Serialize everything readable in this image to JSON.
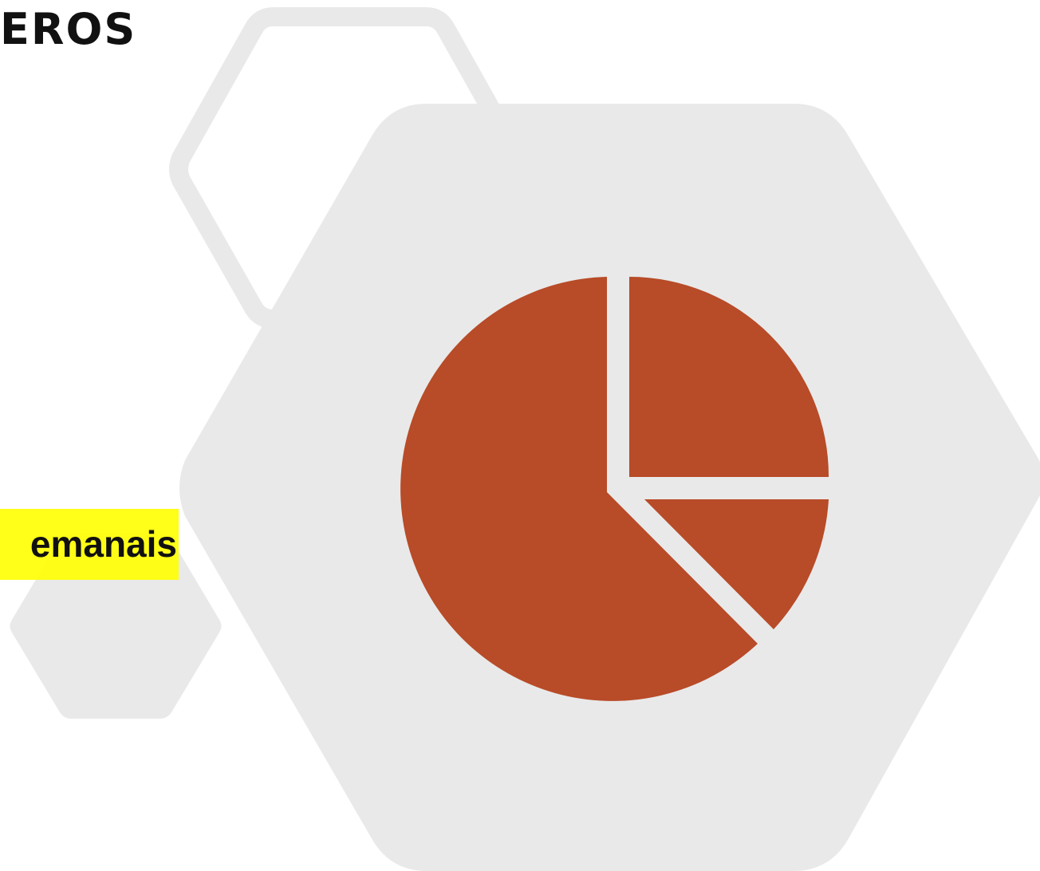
{
  "heading": "EROS",
  "highlight": {
    "text": "emanais"
  },
  "colors": {
    "hexagon": "#e9e9e9",
    "pie": "#b84b28",
    "highlight": "#ffff00",
    "text": "#111111"
  },
  "icons": {
    "pie": "pie-chart-icon",
    "hexagons": "hexagon-decoration"
  }
}
